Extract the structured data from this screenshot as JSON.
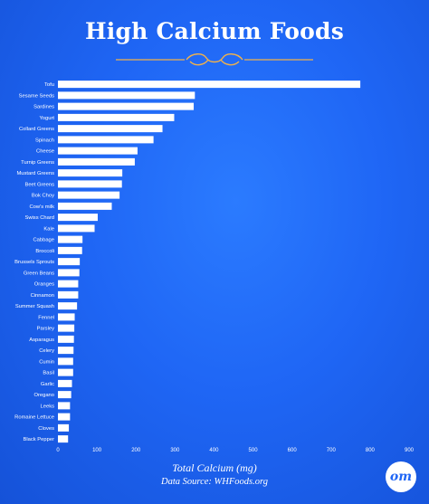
{
  "title": "High Calcium Foods",
  "footer": {
    "xlabel": "Total Calcium (mg)",
    "source": "Data Source: WHFoods.org"
  },
  "logo_text": "om",
  "colors": {
    "bar": "#ffffff",
    "accent": "#f2b24a",
    "background": "#1f66f5"
  },
  "chart_data": {
    "type": "bar",
    "orientation": "horizontal",
    "title": "High Calcium Foods",
    "xlabel": "Total Calcium (mg)",
    "xlim": [
      0,
      900
    ],
    "xticks": [
      0,
      100,
      200,
      300,
      400,
      500,
      600,
      700,
      800,
      900
    ],
    "grid": false,
    "categories": [
      "Tofu",
      "Sesame Seeds",
      "Sardines",
      "Yogurt",
      "Collard Greens",
      "Spinach",
      "Cheese",
      "Turnip Greens",
      "Mustard Greens",
      "Beet Greens",
      "Bok Choy",
      "Cow's milk",
      "Swiss Chard",
      "Kale",
      "Cabbage",
      "Broccoli",
      "Brussels Sprouts",
      "Green Beans",
      "Oranges",
      "Cinnamon",
      "Summer Squash",
      "Fennel",
      "Parsley",
      "Asparagus",
      "Celery",
      "Cumin",
      "Basil",
      "Garlic",
      "Oregano",
      "Leeks",
      "Romaine Lettuce",
      "Cloves",
      "Black Pepper"
    ],
    "values": [
      775,
      351,
      348,
      298,
      268,
      245,
      204,
      197,
      165,
      164,
      158,
      138,
      102,
      94,
      63,
      62,
      56,
      55,
      52,
      52,
      49,
      43,
      42,
      41,
      40,
      39,
      39,
      36,
      34,
      31,
      31,
      28,
      26
    ]
  }
}
